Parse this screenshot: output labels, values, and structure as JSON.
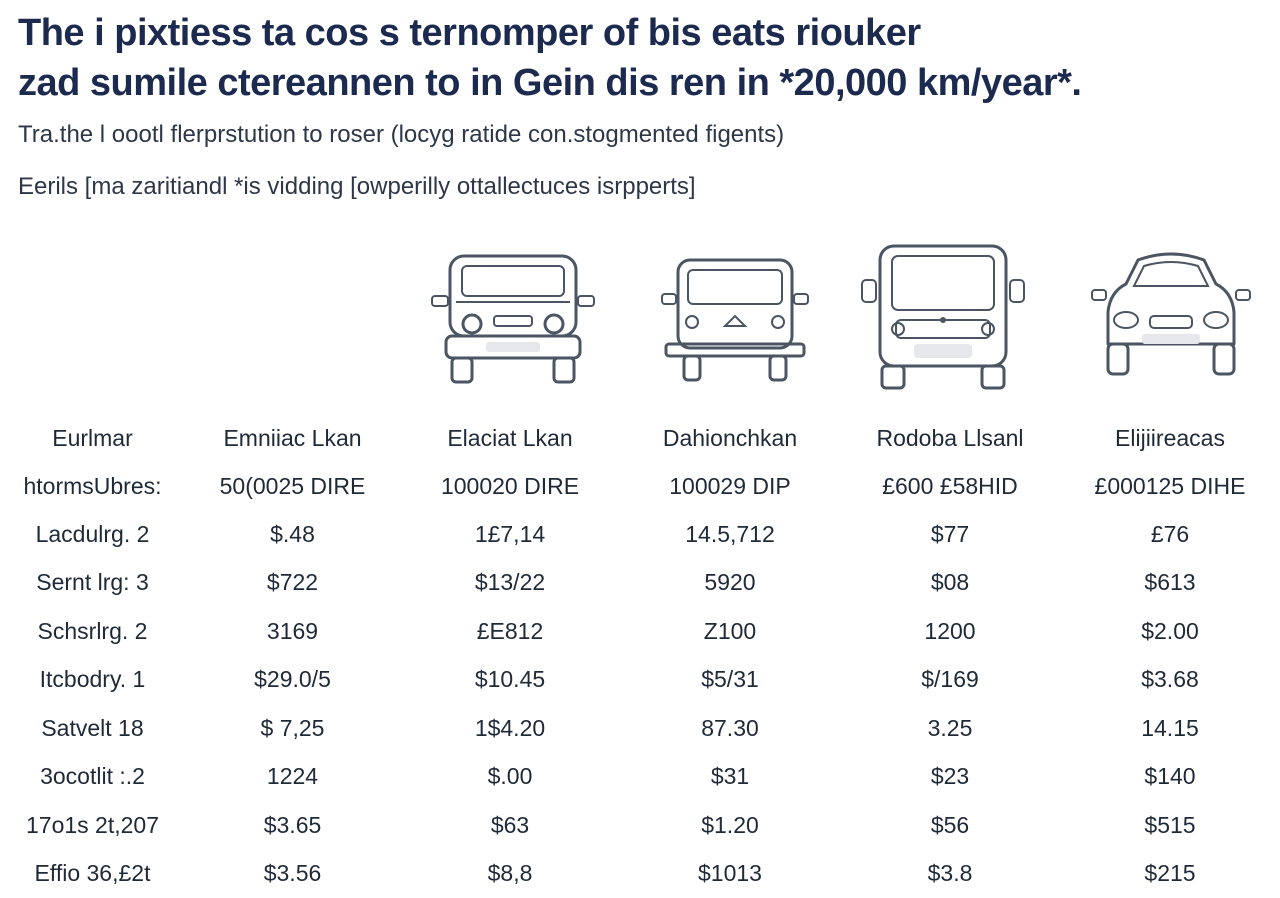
{
  "title_lines": [
    "The i pixtiess ta cos s ternomper of bis eats riouker",
    "zad sumile ctereannen to in Gein dis ren in *20,000 km/year*."
  ],
  "subtitle": "Tra.the l oootl flerprstution to roser (locyg ratide con.stogmented figents)",
  "note": "Eerils [ma zaritiandl *is vidding [owperilly ottallectuces isrpperts]",
  "vehicle_icons": [
    "suv-icon",
    "van-icon",
    "truck-icon",
    "sedan-icon"
  ],
  "chart_data": {
    "type": "table",
    "header_row_1": [
      "Eurlmar",
      "Emniiac Lkan",
      "Elaciat Lkan",
      "Dahionchkan",
      "Rodoba Llsanl",
      "Elijiireacas"
    ],
    "header_row_2": [
      "htormsUbres:",
      "50(0025 DIRE",
      "100020 DIRE",
      "100029 DIP",
      "£600 £58HID",
      "£000125 DIHE"
    ],
    "rows": [
      [
        "Lacdulrg. 2",
        "$.48",
        "1£7,14",
        "14.5,712",
        "$77",
        "£76"
      ],
      [
        "Sernt lrg: 3",
        "$722",
        "$13/22",
        "5920",
        "$08",
        "$613"
      ],
      [
        "Schsrlrg. 2",
        "3169",
        "£E812",
        "Z100",
        "1200",
        "$2.00"
      ],
      [
        "Itcbodry. 1",
        "$29.0/5",
        "$10.45",
        "$5/31",
        "$/169",
        "$3.68"
      ],
      [
        "Satvelt 18",
        "$ 7,25",
        "1$4.20",
        "87.30",
        "3.25",
        "14.15"
      ],
      [
        "3ocotlit :.2",
        "1224",
        "$.00",
        "$31",
        "$23",
        "$140"
      ],
      [
        "17o1s 2t,207",
        "$3.65",
        "$63",
        "$1.20",
        "$56",
        "$515"
      ],
      [
        "Effio 36,£2t",
        "$3.56",
        "$8,8",
        "$1013",
        "$3.8",
        "$215"
      ]
    ]
  }
}
